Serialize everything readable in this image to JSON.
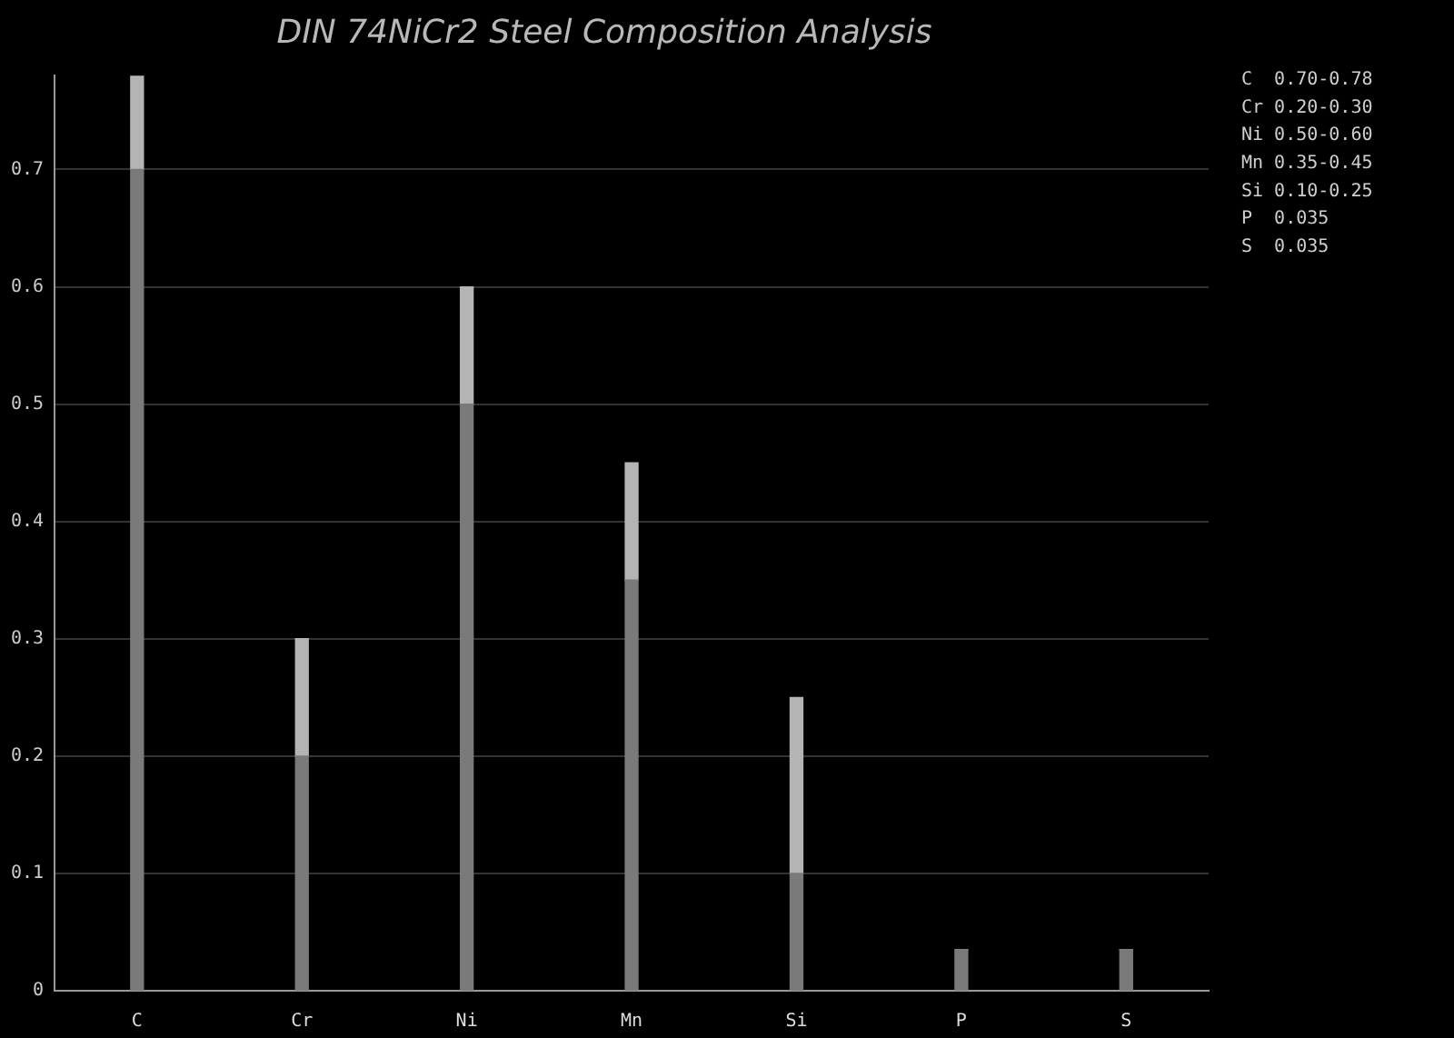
{
  "chart_data": {
    "type": "bar",
    "title": "DIN 74NiCr2 Steel Composition Analysis",
    "categories": [
      "C",
      "Cr",
      "Ni",
      "Mn",
      "Si",
      "P",
      "S"
    ],
    "stacked": true,
    "series": [
      {
        "color": "#7a7a7a",
        "values": [
          0.7,
          0.2,
          0.5,
          0.35,
          0.1,
          0.035,
          0.035
        ]
      },
      {
        "color": "#b4b4b4",
        "values": [
          0.08,
          0.1,
          0.1,
          0.1,
          0.15,
          0,
          0
        ]
      }
    ],
    "ylim": [
      0,
      0.78
    ],
    "yticks": [
      0,
      0.1,
      0.2,
      0.3,
      0.4,
      0.5,
      0.6,
      0.7
    ],
    "grid": "y",
    "legend": false,
    "annotations": [
      "C  0.70-0.78",
      "Cr 0.20-0.30",
      "Ni 0.50-0.60",
      "Mn 0.35-0.45",
      "Si 0.10-0.25",
      "P  0.035",
      "S  0.035"
    ]
  }
}
